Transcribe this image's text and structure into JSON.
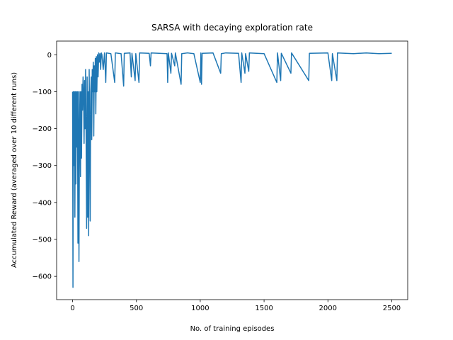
{
  "chart_data": {
    "type": "line",
    "title": "SARSA with decaying exploration rate",
    "x_label": "No. of training episodes",
    "y_label": "Accumulated Reward (averaged over 10 different runs)",
    "xlim": [
      -125,
      2625
    ],
    "ylim": [
      -663,
      37
    ],
    "xticks": [
      0,
      500,
      1000,
      1500,
      2000,
      2500
    ],
    "yticks": [
      {
        "value": -600,
        "label": "−600"
      },
      {
        "value": -500,
        "label": "−500"
      },
      {
        "value": -400,
        "label": "−400"
      },
      {
        "value": -300,
        "label": "−300"
      },
      {
        "value": -200,
        "label": "−200"
      },
      {
        "value": -100,
        "label": "−100"
      },
      0
    ],
    "grid": false,
    "series": [
      {
        "color": "#1f77b4",
        "x": [
          0,
          3,
          6,
          10,
          14,
          18,
          22,
          26,
          30,
          34,
          38,
          42,
          46,
          50,
          54,
          58,
          62,
          66,
          70,
          74,
          78,
          82,
          86,
          90,
          94,
          98,
          102,
          106,
          110,
          114,
          118,
          122,
          126,
          130,
          134,
          138,
          142,
          146,
          150,
          154,
          158,
          162,
          166,
          170,
          174,
          178,
          182,
          186,
          190,
          195,
          200,
          205,
          210,
          215,
          220,
          225,
          230,
          240,
          250,
          260,
          265,
          300,
          330,
          335,
          380,
          400,
          405,
          450,
          460,
          465,
          490,
          495,
          520,
          525,
          600,
          610,
          615,
          740,
          745,
          750,
          770,
          775,
          800,
          805,
          850,
          855,
          900,
          950,
          1000,
          1005,
          1010,
          1015,
          1100,
          1160,
          1165,
          1200,
          1300,
          1320,
          1325,
          1350,
          1355,
          1380,
          1385,
          1500,
          1600,
          1605,
          1630,
          1635,
          1710,
          1715,
          1850,
          1855,
          2000,
          2030,
          2035,
          2070,
          2075,
          2200,
          2300,
          2400,
          2500
        ],
        "values": [
          -100,
          -630,
          -100,
          -300,
          -100,
          -440,
          -100,
          -350,
          -100,
          -250,
          -100,
          -510,
          -100,
          -560,
          -200,
          -100,
          -330,
          -100,
          -280,
          -80,
          -150,
          -60,
          -100,
          -240,
          -70,
          -200,
          -40,
          -230,
          -470,
          -60,
          -440,
          -100,
          -490,
          -40,
          -200,
          -450,
          -100,
          -60,
          -230,
          -40,
          -100,
          -20,
          -220,
          -30,
          -100,
          -10,
          -160,
          -5,
          -100,
          0,
          -60,
          5,
          -20,
          3,
          -40,
          5,
          0,
          -40,
          5,
          -75,
          5,
          3,
          -75,
          5,
          3,
          -85,
          4,
          5,
          -60,
          4,
          -70,
          3,
          -75,
          5,
          4,
          -30,
          5,
          3,
          -75,
          5,
          -50,
          4,
          -30,
          5,
          -80,
          3,
          5,
          3,
          -75,
          5,
          -80,
          4,
          5,
          -50,
          3,
          5,
          4,
          -75,
          5,
          -50,
          3,
          -45,
          5,
          3,
          -75,
          5,
          -70,
          4,
          -50,
          5,
          -70,
          4,
          5,
          -70,
          3,
          -70,
          5,
          3,
          5,
          3,
          4
        ]
      }
    ]
  }
}
